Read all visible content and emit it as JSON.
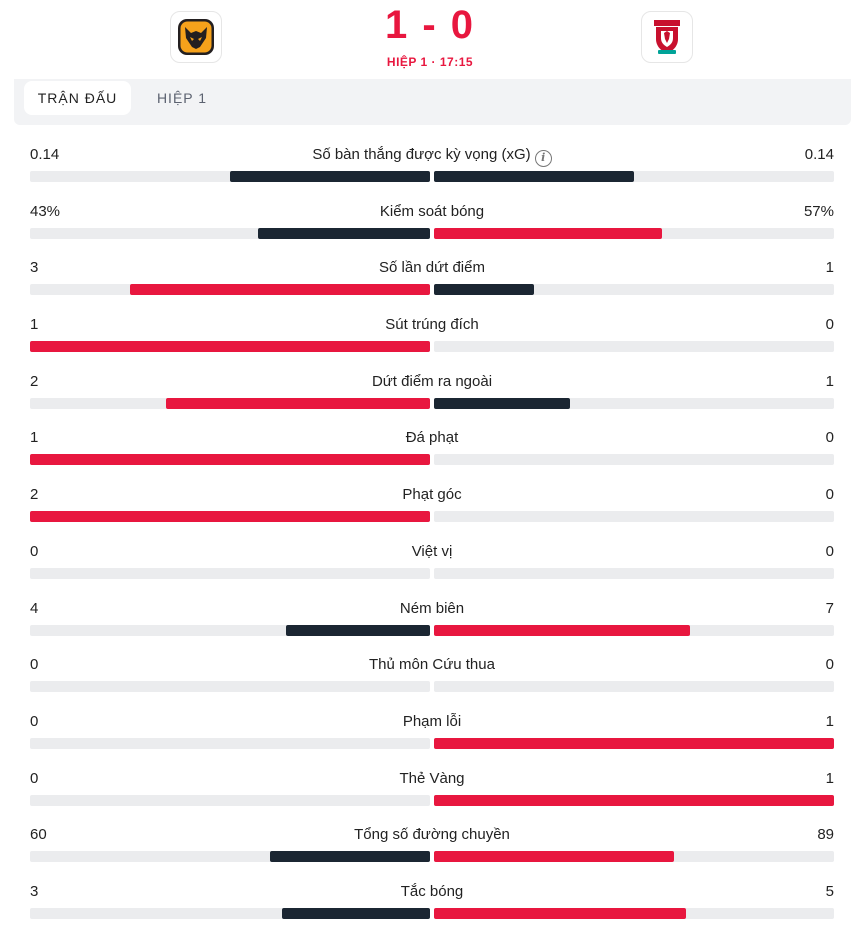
{
  "match": {
    "score": "1 - 0",
    "period": "HIỆP 1 · 17:15",
    "home_crest_icon": "wolves-crest-icon",
    "away_crest_icon": "liverpool-crest-icon"
  },
  "tabs": [
    {
      "label": "TRẬN ĐẤU",
      "active": true
    },
    {
      "label": "HIỆP 1",
      "active": false
    }
  ],
  "colors": {
    "home_bar": "#1b2632",
    "away_bar": "#e8173f",
    "leader_bar": "#e8173f",
    "track": "#ebecee"
  },
  "stats": [
    {
      "label": "Số bàn thắng được kỳ vọng (xG)",
      "home": "0.14",
      "away": "0.14",
      "home_frac": 0.5,
      "away_frac": 0.5,
      "home_color": "#1b2632",
      "away_color": "#1b2632",
      "info": true
    },
    {
      "label": "Kiểm soát bóng",
      "home": "43%",
      "away": "57%",
      "home_frac": 0.43,
      "away_frac": 0.57,
      "home_color": "#1b2632",
      "away_color": "#e8173f"
    },
    {
      "label": "Số lần dứt điểm",
      "home": "3",
      "away": "1",
      "home_frac": 0.75,
      "away_frac": 0.25,
      "home_color": "#e8173f",
      "away_color": "#1b2632"
    },
    {
      "label": "Sút trúng đích",
      "home": "1",
      "away": "0",
      "home_frac": 1.0,
      "away_frac": 0.0,
      "home_color": "#e8173f",
      "away_color": "#1b2632"
    },
    {
      "label": "Dứt điểm ra ngoài",
      "home": "2",
      "away": "1",
      "home_frac": 0.66,
      "away_frac": 0.34,
      "home_color": "#e8173f",
      "away_color": "#1b2632"
    },
    {
      "label": "Đá phạt",
      "home": "1",
      "away": "0",
      "home_frac": 1.0,
      "away_frac": 0.0,
      "home_color": "#e8173f",
      "away_color": "#1b2632"
    },
    {
      "label": "Phạt góc",
      "home": "2",
      "away": "0",
      "home_frac": 1.0,
      "away_frac": 0.0,
      "home_color": "#e8173f",
      "away_color": "#1b2632"
    },
    {
      "label": "Việt vị",
      "home": "0",
      "away": "0",
      "home_frac": 0.0,
      "away_frac": 0.0,
      "home_color": "#1b2632",
      "away_color": "#1b2632"
    },
    {
      "label": "Ném biên",
      "home": "4",
      "away": "7",
      "home_frac": 0.36,
      "away_frac": 0.64,
      "home_color": "#1b2632",
      "away_color": "#e8173f"
    },
    {
      "label": "Thủ môn Cứu thua",
      "home": "0",
      "away": "0",
      "home_frac": 0.0,
      "away_frac": 0.0,
      "home_color": "#1b2632",
      "away_color": "#1b2632"
    },
    {
      "label": "Phạm lỗi",
      "home": "0",
      "away": "1",
      "home_frac": 0.0,
      "away_frac": 1.0,
      "home_color": "#1b2632",
      "away_color": "#e8173f"
    },
    {
      "label": "Thẻ Vàng",
      "home": "0",
      "away": "1",
      "home_frac": 0.0,
      "away_frac": 1.0,
      "home_color": "#1b2632",
      "away_color": "#e8173f"
    },
    {
      "label": "Tổng số đường chuyền",
      "home": "60",
      "away": "89",
      "home_frac": 0.4,
      "away_frac": 0.6,
      "home_color": "#1b2632",
      "away_color": "#e8173f"
    },
    {
      "label": "Tắc bóng",
      "home": "3",
      "away": "5",
      "home_frac": 0.37,
      "away_frac": 0.63,
      "home_color": "#1b2632",
      "away_color": "#e8173f"
    }
  ]
}
